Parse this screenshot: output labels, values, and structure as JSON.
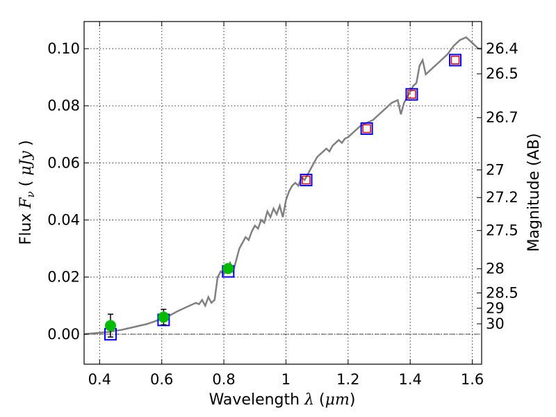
{
  "chart_data": {
    "type": "scatter",
    "xlabel": {
      "prefix": "Wavelength",
      "symbol": "λ",
      "open": "(",
      "unit": "μm",
      "close": ")"
    },
    "ylabel": {
      "prefix": "Flux",
      "symbol": "F",
      "subscript": "ν",
      "open": "(",
      "unit": "μJy",
      "close": ")"
    },
    "y2label": "Magnitude (AB)",
    "xlim": [
      0.35,
      1.63
    ],
    "ylim": [
      -0.0105,
      0.1095
    ],
    "xticks": [
      0.4,
      0.6,
      0.8,
      1.0,
      1.2,
      1.4,
      1.6
    ],
    "xtick_labels": [
      "0.4",
      "0.6",
      "0.8",
      "1",
      "1.2",
      "1.4",
      "1.6"
    ],
    "yticks": [
      0.0,
      0.02,
      0.04,
      0.06,
      0.08,
      0.1
    ],
    "ytick_labels": [
      "0.00",
      "0.02",
      "0.04",
      "0.06",
      "0.08",
      "0.10"
    ],
    "magnitude_ticks": [
      26.4,
      26.5,
      26.7,
      27,
      27.2,
      27.5,
      28,
      28.5,
      29,
      30
    ],
    "magnitude_tick_labels": [
      "26.4",
      "26.5",
      "26.7",
      "27",
      "27.2",
      "27.5",
      "28",
      "28.5",
      "29",
      "30"
    ],
    "grid": true,
    "colors": {
      "model": "#808080",
      "observed": "#00bb00",
      "model_photometry": "#0000ff",
      "nir_box": "#dd0000",
      "zero_line": "#444444"
    },
    "series": [
      {
        "name": "model-spectrum",
        "style": "line",
        "x": [
          0.35,
          0.37,
          0.39,
          0.41,
          0.43,
          0.45,
          0.47,
          0.49,
          0.51,
          0.53,
          0.55,
          0.57,
          0.59,
          0.61,
          0.63,
          0.65,
          0.67,
          0.69,
          0.71,
          0.72,
          0.73,
          0.74,
          0.75,
          0.76,
          0.77,
          0.78,
          0.79,
          0.8,
          0.81,
          0.82,
          0.83,
          0.84,
          0.85,
          0.86,
          0.87,
          0.88,
          0.89,
          0.9,
          0.91,
          0.92,
          0.93,
          0.94,
          0.95,
          0.96,
          0.97,
          0.98,
          0.99,
          1.0,
          1.01,
          1.02,
          1.03,
          1.04,
          1.05,
          1.06,
          1.07,
          1.08,
          1.09,
          1.1,
          1.11,
          1.12,
          1.13,
          1.14,
          1.15,
          1.16,
          1.17,
          1.18,
          1.19,
          1.2,
          1.22,
          1.24,
          1.26,
          1.28,
          1.3,
          1.32,
          1.34,
          1.36,
          1.37,
          1.38,
          1.39,
          1.4,
          1.41,
          1.42,
          1.43,
          1.44,
          1.45,
          1.46,
          1.48,
          1.5,
          1.52,
          1.54,
          1.56,
          1.58,
          1.59,
          1.6,
          1.61,
          1.62,
          1.63
        ],
        "values": [
          0.0,
          0.0002,
          0.0004,
          0.0006,
          0.0008,
          0.0012,
          0.0015,
          0.002,
          0.0025,
          0.003,
          0.0035,
          0.0042,
          0.005,
          0.0058,
          0.0068,
          0.008,
          0.009,
          0.01,
          0.011,
          0.0105,
          0.012,
          0.01,
          0.013,
          0.011,
          0.012,
          0.02,
          0.022,
          0.021,
          0.023,
          0.025,
          0.022,
          0.026,
          0.03,
          0.032,
          0.034,
          0.033,
          0.036,
          0.038,
          0.037,
          0.04,
          0.039,
          0.043,
          0.041,
          0.044,
          0.042,
          0.045,
          0.041,
          0.047,
          0.05,
          0.052,
          0.053,
          0.052,
          0.055,
          0.054,
          0.056,
          0.058,
          0.06,
          0.062,
          0.063,
          0.064,
          0.065,
          0.064,
          0.066,
          0.067,
          0.068,
          0.067,
          0.0685,
          0.069,
          0.071,
          0.073,
          0.074,
          0.075,
          0.077,
          0.079,
          0.081,
          0.082,
          0.077,
          0.081,
          0.083,
          0.085,
          0.087,
          0.088,
          0.094,
          0.096,
          0.091,
          0.092,
          0.094,
          0.096,
          0.098,
          0.101,
          0.103,
          0.104,
          0.103,
          0.102,
          0.101,
          0.1,
          0.1
        ]
      },
      {
        "name": "observed-photometry",
        "style": "points-with-errorbars",
        "x": [
          0.435,
          0.606,
          0.814
        ],
        "values": [
          0.003,
          0.006,
          0.023
        ],
        "errors": [
          0.004,
          0.0027,
          0.0015
        ]
      },
      {
        "name": "model-photometry-optical",
        "style": "blue-squares",
        "x": [
          0.435,
          0.606,
          0.814
        ],
        "values": [
          0.0,
          0.005,
          0.022
        ]
      },
      {
        "name": "model-photometry-nir",
        "style": "blue-red-squares",
        "x": [
          1.065,
          1.26,
          1.405,
          1.545
        ],
        "values": [
          0.054,
          0.072,
          0.084,
          0.096
        ]
      }
    ]
  }
}
